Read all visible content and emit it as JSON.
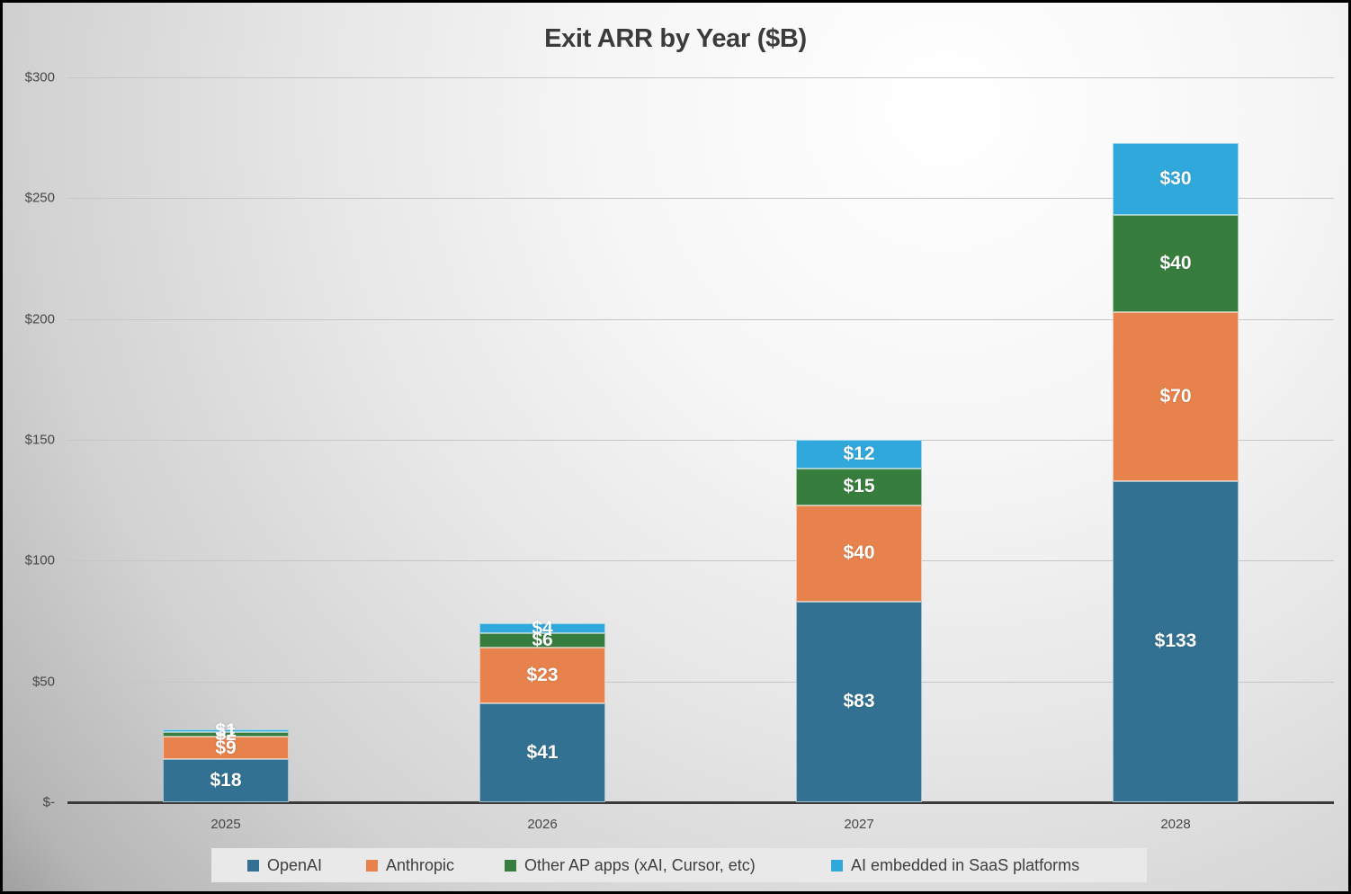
{
  "title": "Exit ARR by Year ($B)",
  "chart_data": {
    "type": "bar",
    "stacked": true,
    "title": "Exit ARR by Year ($B)",
    "categories": [
      "2025",
      "2026",
      "2027",
      "2028"
    ],
    "series": [
      {
        "name": "OpenAI",
        "color": "#327191",
        "values": [
          18,
          41,
          83,
          133
        ],
        "data_labels": [
          "$18",
          "$41",
          "$83",
          "$133"
        ]
      },
      {
        "name": "Anthropic",
        "color": "#E8824C",
        "values": [
          9,
          23,
          40,
          70
        ],
        "data_labels": [
          "$9",
          "$23",
          "$40",
          "$70"
        ]
      },
      {
        "name": "Other AP apps (xAI, Cursor, etc)",
        "color": "#377D3D",
        "values": [
          2,
          6,
          15,
          40
        ],
        "data_labels": [
          "$2",
          "$6",
          "$15",
          "$40"
        ]
      },
      {
        "name": "AI embedded in SaaS platforms",
        "color": "#31A8DC",
        "values": [
          1,
          4,
          12,
          30
        ],
        "data_labels": [
          "$1",
          "$4",
          "$12",
          "$30"
        ]
      }
    ],
    "totals": [
      30,
      74,
      150,
      273
    ],
    "y_axis": {
      "tick_labels": [
        "$300",
        "$250",
        "$200",
        "$150",
        "$100",
        "$50",
        "$-"
      ],
      "tick_values": [
        300,
        250,
        200,
        150,
        100,
        50,
        0
      ],
      "min": 0,
      "max": 300
    },
    "grid": true,
    "legend_position": "bottom",
    "colors": {
      "grid": "#c6c6c6",
      "axis": "#3a3a3a",
      "title_text": "#3b3b3b",
      "tick_text": "#474747",
      "legend_text": "#3f3f3f",
      "legend_background": "#e9e9e9",
      "value_label_text": "#ffffff"
    }
  }
}
